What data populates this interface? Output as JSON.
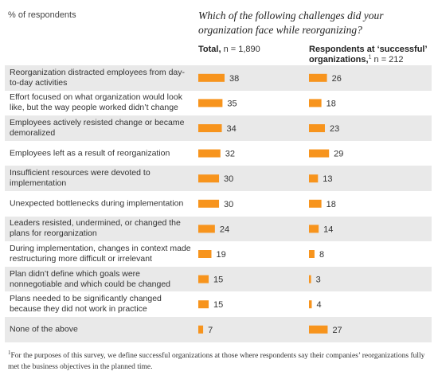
{
  "header": {
    "unit_label": "% of respondents",
    "question": "Which of the following challenges did your organization face while reorganizing?"
  },
  "columns": {
    "total": {
      "label": "Total,",
      "n": "n = 1,890"
    },
    "successful": {
      "label": "Respondents at ‘successful’ organizations,",
      "footnote_mark": "1",
      "n": "n = 212"
    }
  },
  "footnote": {
    "mark": "1",
    "text": "For the purposes of this survey, we define successful organizations at those where respondents say their companies’ reorganizations fully met the business objectives in the planned time."
  },
  "colors": {
    "bar": "#f7941d",
    "shade": "#e9e9e9"
  },
  "chart_data": {
    "type": "bar",
    "orientation": "horizontal",
    "title": "Which of the following challenges did your organization face while reorganizing?",
    "ylabel": "% of respondents",
    "categories": [
      "Reorganization distracted employees from day-to-day activities",
      "Effort focused on what organization would look like, but the way people worked didn’t change",
      "Employees actively resisted change or became demoralized",
      "Employees left as a result of reorganization",
      "Insufficient resources were devoted to implementation",
      "Unexpected bottlenecks during implementation",
      "Leaders resisted, undermined, or changed the plans for reorganization",
      "During implementation, changes in context made restructuring more difficult or irrelevant",
      "Plan didn’t define which goals were nonnegotiable and which could be changed",
      "Plans needed to be significantly changed because they did not work in practice",
      "None of the above"
    ],
    "series": [
      {
        "name": "Total, n = 1,890",
        "values": [
          38,
          35,
          34,
          32,
          30,
          30,
          24,
          19,
          15,
          15,
          7
        ]
      },
      {
        "name": "Respondents at ‘successful’ organizations, n = 212",
        "values": [
          26,
          18,
          23,
          29,
          13,
          18,
          14,
          8,
          3,
          4,
          27
        ]
      }
    ],
    "xlim": [
      0,
      40
    ],
    "grid": false,
    "legend": "none"
  }
}
